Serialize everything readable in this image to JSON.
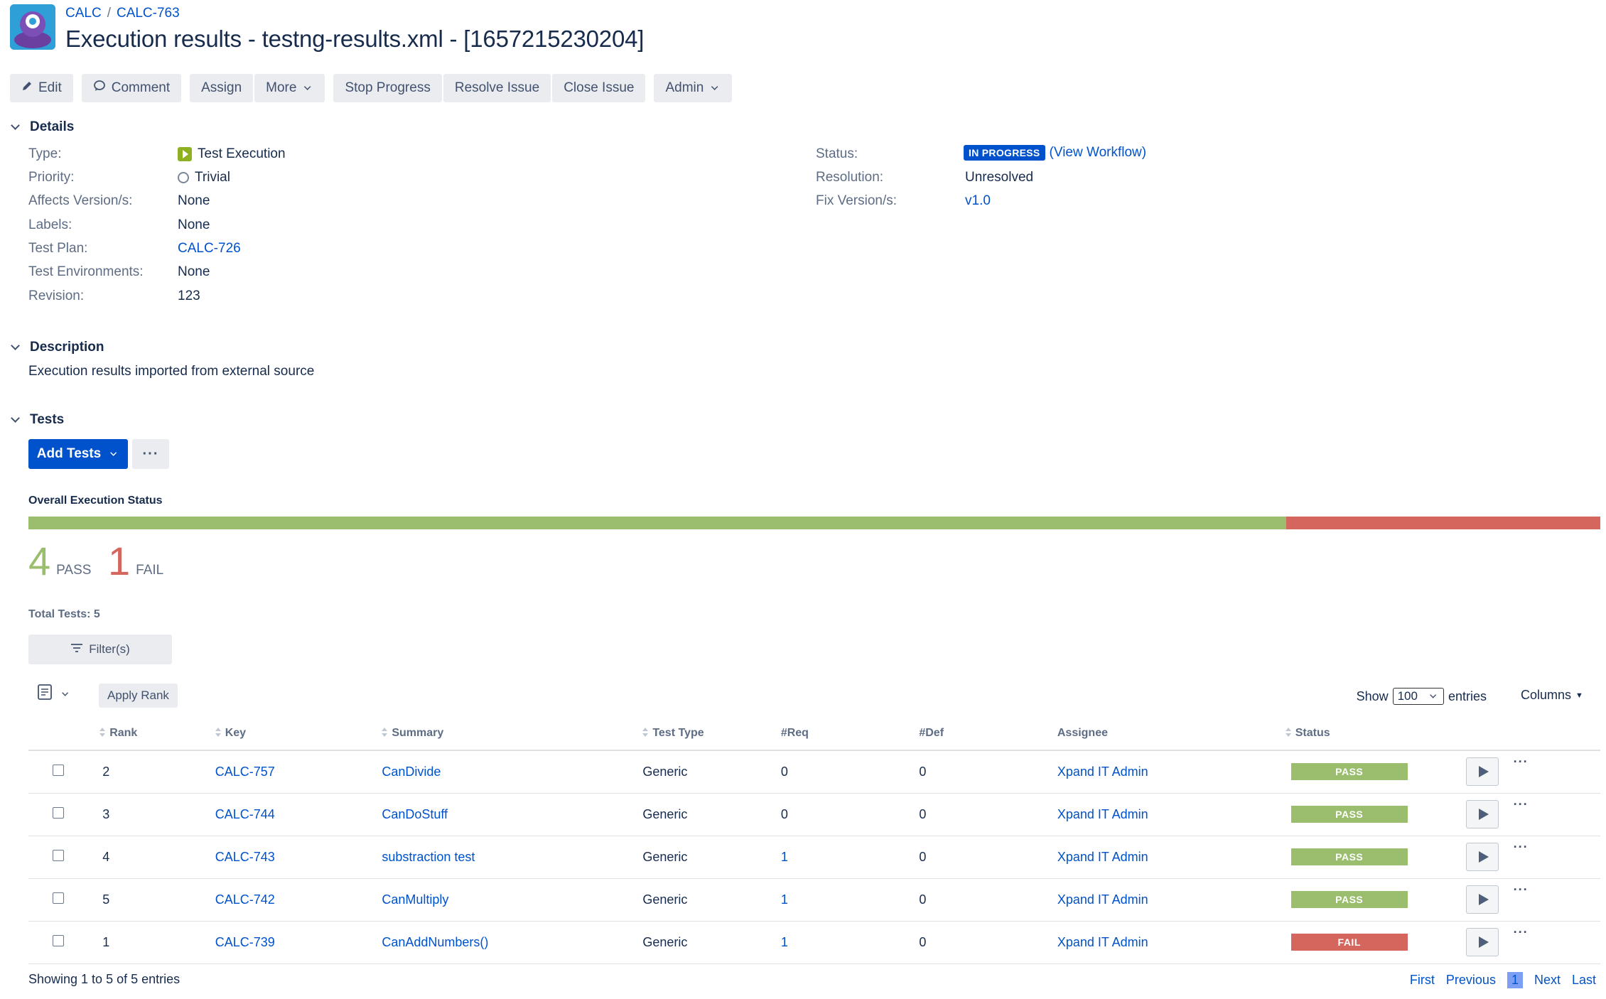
{
  "header": {
    "breadcrumb": [
      "CALC",
      "CALC-763"
    ],
    "breadcrumb_sep": "/",
    "title": "Execution results - testng-results.xml - [1657215230204]"
  },
  "toolbar": {
    "edit": "Edit",
    "comment": "Comment",
    "assign": "Assign",
    "more": "More",
    "stop_progress": "Stop Progress",
    "resolve_issue": "Resolve Issue",
    "close_issue": "Close Issue",
    "admin": "Admin"
  },
  "details": {
    "heading": "Details",
    "left": [
      {
        "label": "Type:",
        "value": "Test Execution",
        "icon": "test-execution-icon"
      },
      {
        "label": "Priority:",
        "value": "Trivial",
        "icon": "priority-trivial-icon"
      },
      {
        "label": "Affects Version/s:",
        "value": "None"
      },
      {
        "label": "Labels:",
        "value": "None"
      },
      {
        "label": "Test Plan:",
        "value": "CALC-726",
        "link": true
      },
      {
        "label": "Test Environments:",
        "value": "None"
      },
      {
        "label": "Revision:",
        "value": "123"
      }
    ],
    "right": [
      {
        "label": "Status:",
        "value": "IN PROGRESS",
        "extra": "(View Workflow)"
      },
      {
        "label": "Resolution:",
        "value": "Unresolved"
      },
      {
        "label": "Fix Version/s:",
        "value": "v1.0",
        "link": true
      }
    ]
  },
  "description": {
    "heading": "Description",
    "text": "Execution results imported from external source"
  },
  "tests": {
    "heading": "Tests",
    "add_tests": "Add Tests",
    "more_dots": "···",
    "overall_label": "Overall Execution Status",
    "pass_count": "4",
    "pass_label": "PASS",
    "fail_count": "1",
    "fail_label": "FAIL",
    "pass_fraction": 0.8,
    "fail_fraction": 0.2,
    "pass_color": "#9abe6d",
    "fail_color": "#d4665e",
    "total_tests": "Total Tests: 5",
    "filter_label": "Filter(s)",
    "apply_rank": "Apply Rank",
    "show_label": "Show",
    "show_value": "100",
    "entries_label": "entries",
    "columns_label": "Columns",
    "columns": [
      "Rank",
      "Key",
      "Summary",
      "Test Type",
      "#Req",
      "#Def",
      "Assignee",
      "Status"
    ],
    "rows": [
      {
        "rank": "2",
        "key": "CALC-757",
        "summary": "CanDivide",
        "type": "Generic",
        "req": "0",
        "def": "0",
        "assignee": "Xpand IT Admin",
        "status": "PASS"
      },
      {
        "rank": "3",
        "key": "CALC-744",
        "summary": "CanDoStuff",
        "type": "Generic",
        "req": "0",
        "def": "0",
        "assignee": "Xpand IT Admin",
        "status": "PASS"
      },
      {
        "rank": "4",
        "key": "CALC-743",
        "summary": "substraction test",
        "type": "Generic",
        "req": "1",
        "def": "0",
        "assignee": "Xpand IT Admin",
        "status": "PASS"
      },
      {
        "rank": "5",
        "key": "CALC-742",
        "summary": "CanMultiply",
        "type": "Generic",
        "req": "1",
        "def": "0",
        "assignee": "Xpand IT Admin",
        "status": "PASS"
      },
      {
        "rank": "1",
        "key": "CALC-739",
        "summary": "CanAddNumbers()",
        "type": "Generic",
        "req": "1",
        "def": "0",
        "assignee": "Xpand IT Admin",
        "status": "FAIL"
      }
    ],
    "row_more": "···",
    "showing": "Showing 1 to 5 of 5 entries",
    "pagination": {
      "first": "First",
      "previous": "Previous",
      "current": "1",
      "next": "Next",
      "last": "Last"
    }
  }
}
